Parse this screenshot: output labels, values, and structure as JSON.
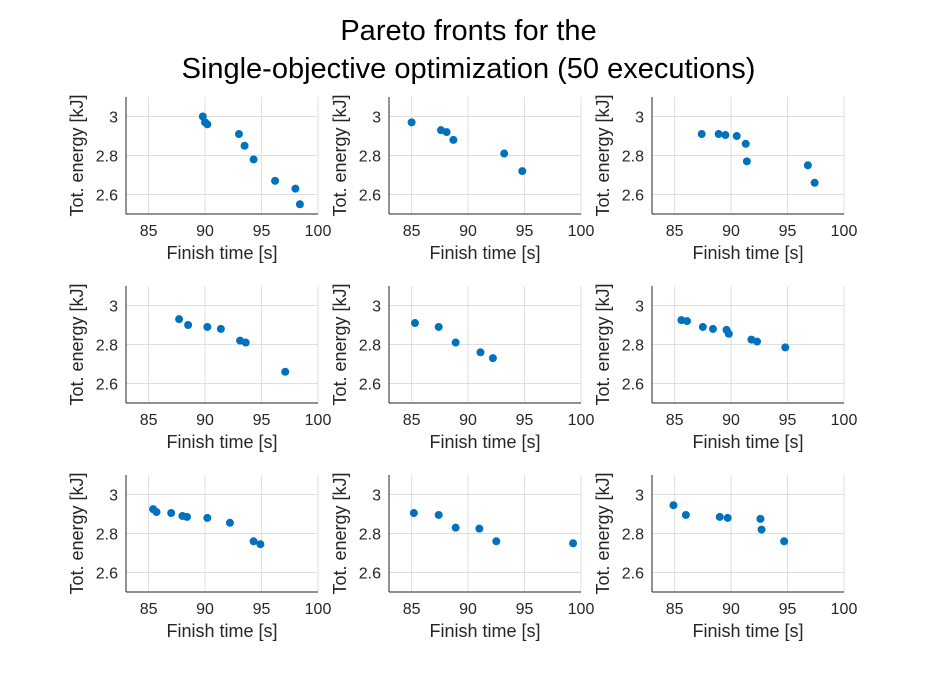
{
  "figure": {
    "title_line1": "Pareto fronts for the",
    "title_line2": "Single-objective optimization (50 executions)"
  },
  "chart_data": [
    {
      "type": "scatter",
      "xlabel": "Finish time [s]",
      "ylabel": "Tot. energy [kJ]",
      "xlim": [
        83,
        100
      ],
      "ylim": [
        2.5,
        3.1
      ],
      "xticks": [
        85,
        90,
        95,
        100
      ],
      "yticks": [
        2.6,
        2.8,
        3
      ],
      "ytick_labels": [
        "2.6",
        "2.8",
        "3"
      ],
      "grid": true,
      "color": "#0072BD",
      "x": [
        89.8,
        90.0,
        90.2,
        93.0,
        93.5,
        94.3,
        96.2,
        98.0,
        98.4
      ],
      "y": [
        3.0,
        2.97,
        2.96,
        2.91,
        2.85,
        2.78,
        2.67,
        2.63,
        2.55
      ]
    },
    {
      "type": "scatter",
      "xlabel": "Finish time [s]",
      "ylabel": "Tot. energy [kJ]",
      "xlim": [
        83,
        100
      ],
      "ylim": [
        2.5,
        3.1
      ],
      "xticks": [
        85,
        90,
        95,
        100
      ],
      "yticks": [
        2.6,
        2.8,
        3
      ],
      "ytick_labels": [
        "2.6",
        "2.8",
        "3"
      ],
      "grid": true,
      "color": "#0072BD",
      "x": [
        85.0,
        87.6,
        88.1,
        88.7,
        93.2,
        94.8
      ],
      "y": [
        2.97,
        2.93,
        2.92,
        2.88,
        2.81,
        2.72
      ]
    },
    {
      "type": "scatter",
      "xlabel": "Finish time [s]",
      "ylabel": "Tot. energy [kJ]",
      "xlim": [
        83,
        100
      ],
      "ylim": [
        2.5,
        3.1
      ],
      "xticks": [
        85,
        90,
        95,
        100
      ],
      "yticks": [
        2.6,
        2.8,
        3
      ],
      "ytick_labels": [
        "2.6",
        "2.8",
        "3"
      ],
      "grid": true,
      "color": "#0072BD",
      "x": [
        87.4,
        88.9,
        89.5,
        90.5,
        91.3,
        91.4,
        96.8,
        97.4
      ],
      "y": [
        2.91,
        2.91,
        2.905,
        2.9,
        2.86,
        2.77,
        2.75,
        2.66
      ]
    },
    {
      "type": "scatter",
      "xlabel": "Finish time [s]",
      "ylabel": "Tot. energy [kJ]",
      "xlim": [
        83,
        100
      ],
      "ylim": [
        2.5,
        3.1
      ],
      "xticks": [
        85,
        90,
        95,
        100
      ],
      "yticks": [
        2.6,
        2.8,
        3
      ],
      "ytick_labels": [
        "2.6",
        "2.8",
        "3"
      ],
      "grid": true,
      "color": "#0072BD",
      "x": [
        87.7,
        88.5,
        90.2,
        91.4,
        93.1,
        93.6,
        97.1
      ],
      "y": [
        2.93,
        2.9,
        2.89,
        2.88,
        2.82,
        2.81,
        2.66
      ]
    },
    {
      "type": "scatter",
      "xlabel": "Finish time [s]",
      "ylabel": "Tot. energy [kJ]",
      "xlim": [
        83,
        100
      ],
      "ylim": [
        2.5,
        3.1
      ],
      "xticks": [
        85,
        90,
        95,
        100
      ],
      "yticks": [
        2.6,
        2.8,
        3
      ],
      "ytick_labels": [
        "2.6",
        "2.8",
        "3"
      ],
      "grid": true,
      "color": "#0072BD",
      "x": [
        85.3,
        87.4,
        88.9,
        91.1,
        92.2
      ],
      "y": [
        2.91,
        2.89,
        2.81,
        2.76,
        2.73
      ]
    },
    {
      "type": "scatter",
      "xlabel": "Finish time [s]",
      "ylabel": "Tot. energy [kJ]",
      "xlim": [
        83,
        100
      ],
      "ylim": [
        2.5,
        3.1
      ],
      "xticks": [
        85,
        90,
        95,
        100
      ],
      "yticks": [
        2.6,
        2.8,
        3
      ],
      "ytick_labels": [
        "2.6",
        "2.8",
        "3"
      ],
      "grid": true,
      "color": "#0072BD",
      "x": [
        85.6,
        86.1,
        87.5,
        88.4,
        89.6,
        89.8,
        91.8,
        92.3,
        94.8
      ],
      "y": [
        2.925,
        2.92,
        2.89,
        2.88,
        2.875,
        2.855,
        2.825,
        2.815,
        2.785
      ]
    },
    {
      "type": "scatter",
      "xlabel": "Finish time [s]",
      "ylabel": "Tot. energy [kJ]",
      "xlim": [
        83,
        100
      ],
      "ylim": [
        2.5,
        3.1
      ],
      "xticks": [
        85,
        90,
        95,
        100
      ],
      "yticks": [
        2.6,
        2.8,
        3
      ],
      "ytick_labels": [
        "2.6",
        "2.8",
        "3"
      ],
      "grid": true,
      "color": "#0072BD",
      "x": [
        85.4,
        85.7,
        87.0,
        88.0,
        88.4,
        90.2,
        92.2,
        94.3,
        94.9
      ],
      "y": [
        2.925,
        2.91,
        2.905,
        2.89,
        2.885,
        2.88,
        2.855,
        2.76,
        2.745
      ]
    },
    {
      "type": "scatter",
      "xlabel": "Finish time [s]",
      "ylabel": "Tot. energy [kJ]",
      "xlim": [
        83,
        100
      ],
      "ylim": [
        2.5,
        3.1
      ],
      "xticks": [
        85,
        90,
        95,
        100
      ],
      "yticks": [
        2.6,
        2.8,
        3
      ],
      "ytick_labels": [
        "2.6",
        "2.8",
        "3"
      ],
      "grid": true,
      "color": "#0072BD",
      "x": [
        85.2,
        87.4,
        88.9,
        91.0,
        92.5,
        99.3
      ],
      "y": [
        2.905,
        2.895,
        2.83,
        2.825,
        2.76,
        2.75
      ]
    },
    {
      "type": "scatter",
      "xlabel": "Finish time [s]",
      "ylabel": "Tot. energy [kJ]",
      "xlim": [
        83,
        100
      ],
      "ylim": [
        2.5,
        3.1
      ],
      "xticks": [
        85,
        90,
        95,
        100
      ],
      "yticks": [
        2.6,
        2.8,
        3
      ],
      "ytick_labels": [
        "2.6",
        "2.8",
        "3"
      ],
      "grid": true,
      "color": "#0072BD",
      "x": [
        84.9,
        86.0,
        89.0,
        89.7,
        92.6,
        92.7,
        94.7
      ],
      "y": [
        2.945,
        2.895,
        2.885,
        2.88,
        2.875,
        2.82,
        2.76
      ]
    }
  ]
}
